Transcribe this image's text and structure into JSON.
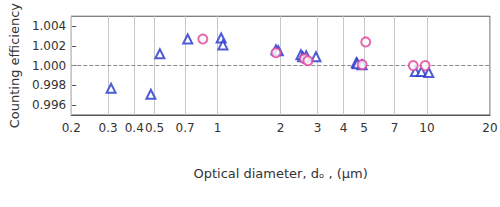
{
  "chart_data": {
    "type": "scatter",
    "xlabel": "Optical diameter, dₒ , (μm)",
    "ylabel": "Counting efficiency",
    "log": "x",
    "grid": "x",
    "xlim": [
      0.2,
      20
    ],
    "xticks": [
      0.2,
      0.3,
      0.4,
      0.5,
      0.7,
      1,
      2,
      3,
      4,
      5,
      7,
      10,
      20
    ],
    "ylim": [
      0.995,
      1.005
    ],
    "yticks": [
      0.996,
      0.998,
      {
        "value": 1,
        "label": "1.000"
      },
      1.002,
      1.004
    ],
    "reference_line": {
      "value": 1,
      "line_style": "dashed"
    },
    "series": [
      {
        "color": "#2233cc",
        "marker": "triangle-open",
        "x": [
          0.31,
          0.48,
          0.53,
          0.72,
          1.04,
          1.06,
          1.9,
          1.95,
          2.5,
          2.55,
          2.65,
          2.95,
          4.6,
          4.65,
          4.9,
          8.8,
          9.4,
          10.2
        ],
        "values": [
          0.9977,
          0.9971,
          1.0012,
          1.0027,
          1.0028,
          1.0021,
          1.0016,
          1.0015,
          1.0011,
          1.0009,
          1.001,
          1.0009,
          1.0003,
          1.0002,
          1.0001,
          0.9994,
          0.9994,
          0.9993
        ]
      },
      {
        "color": "#e0449a",
        "marker": "circle-open",
        "x": [
          0.85,
          1.9,
          2.6,
          2.7,
          4.9,
          5.1,
          8.6,
          9.8
        ],
        "values": [
          1.0027,
          1.0013,
          1.0007,
          1.0005,
          1.0001,
          1.0024,
          1.0,
          1.0
        ]
      }
    ]
  }
}
